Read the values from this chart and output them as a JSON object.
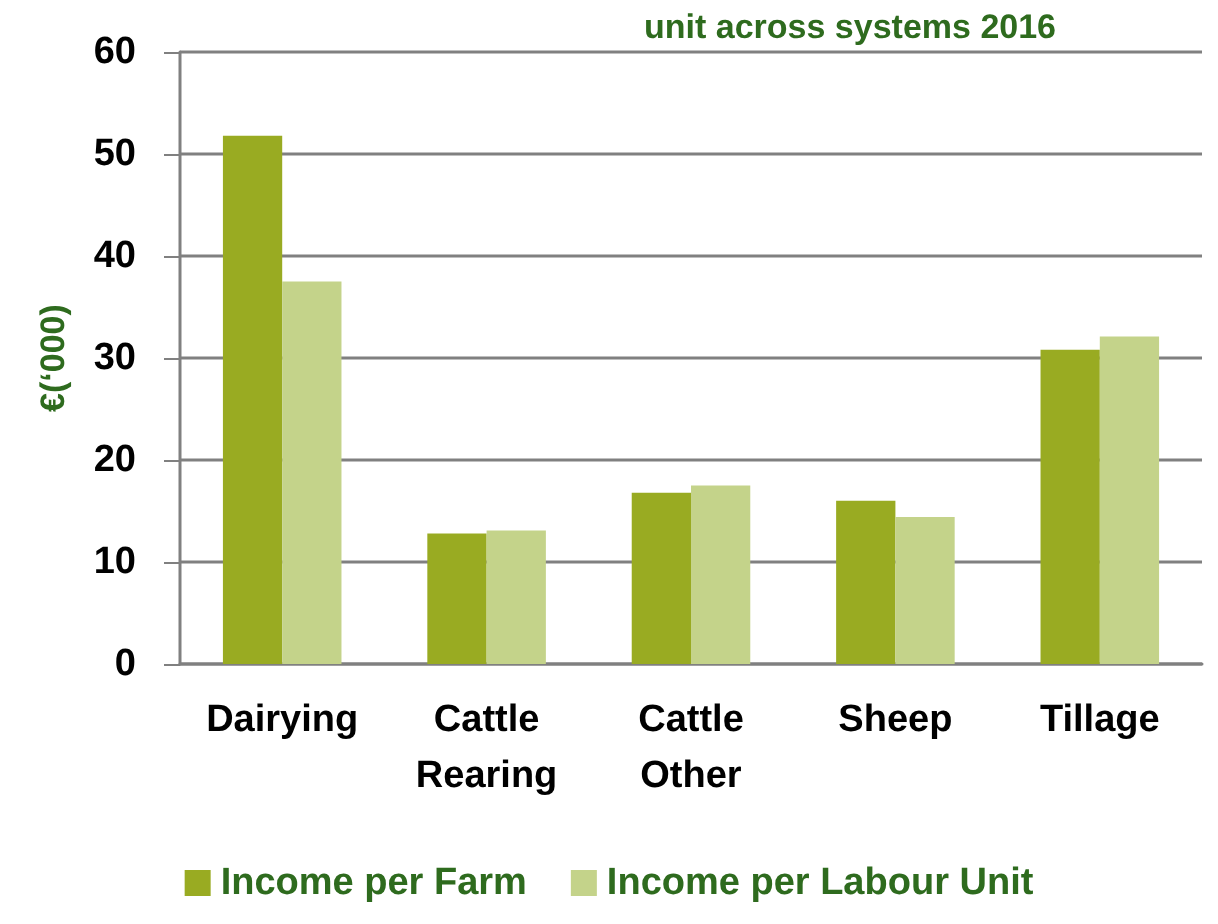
{
  "chart_data": {
    "type": "bar",
    "title": "unit across systems 2016",
    "ylabel": "€(‘000)",
    "categories": [
      "Dairying",
      "Cattle\nRearing",
      "Cattle\nOther",
      "Sheep",
      "Tillage"
    ],
    "series": [
      {
        "name": "Income per Farm",
        "color": "#99ab22",
        "values": [
          51.8,
          12.8,
          16.8,
          16.0,
          30.8
        ]
      },
      {
        "name": "Income per Labour Unit",
        "color": "#c4d38a",
        "values": [
          37.5,
          13.1,
          17.5,
          14.4,
          32.1
        ]
      }
    ],
    "ylim": [
      0,
      60
    ],
    "yticks": [
      0,
      10,
      20,
      30,
      40,
      50,
      60
    ],
    "grid": "y",
    "legend": "bottom"
  }
}
